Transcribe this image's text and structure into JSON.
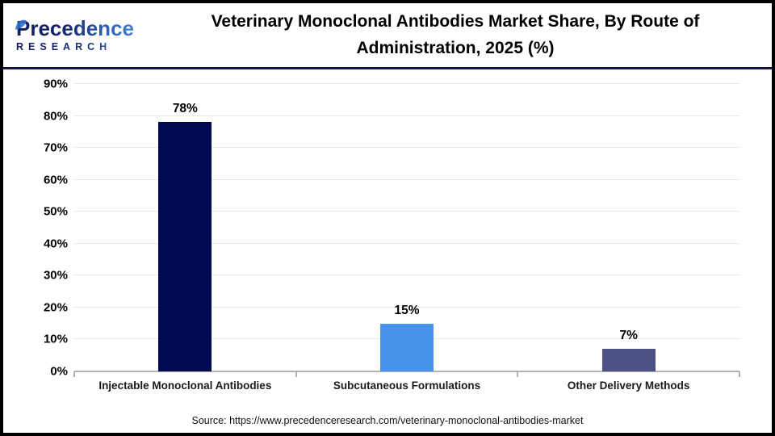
{
  "header": {
    "logo_line1": "Precedence",
    "logo_line2": "RESEARCH",
    "title_lines": [
      "Veterinary Monoclonal Antibodies Market Share, By Route of",
      "Administration, 2025 (%)"
    ]
  },
  "chart_data": {
    "type": "bar",
    "title": "Veterinary Monoclonal Antibodies Market Share, By Route of Administration, 2025 (%)",
    "categories": [
      "Injectable Monoclonal Antibodies",
      "Subcutaneous Formulations",
      "Other Delivery Methods"
    ],
    "values": [
      78,
      15,
      7
    ],
    "value_labels": [
      "78%",
      "15%",
      "7%"
    ],
    "bar_colors": [
      "#000A52",
      "#4793EB",
      "#4D5187"
    ],
    "xlabel": "",
    "ylabel": "",
    "ylim": [
      0,
      90
    ],
    "ytick_step": 10,
    "ytick_labels": [
      "0%",
      "10%",
      "20%",
      "30%",
      "40%",
      "50%",
      "60%",
      "70%",
      "80%",
      "90%"
    ],
    "grid": true,
    "legend": false
  },
  "footer": {
    "source": "Source: https://www.precedenceresearch.com/veterinary-monoclonal-antibodies-market"
  },
  "colors": {
    "header_divider": "#131353",
    "gridline": "#e9e9e9",
    "axis_line": "#b3b3b3",
    "logo_navy": "#141c5e",
    "logo_blue": "#4e93e0"
  }
}
